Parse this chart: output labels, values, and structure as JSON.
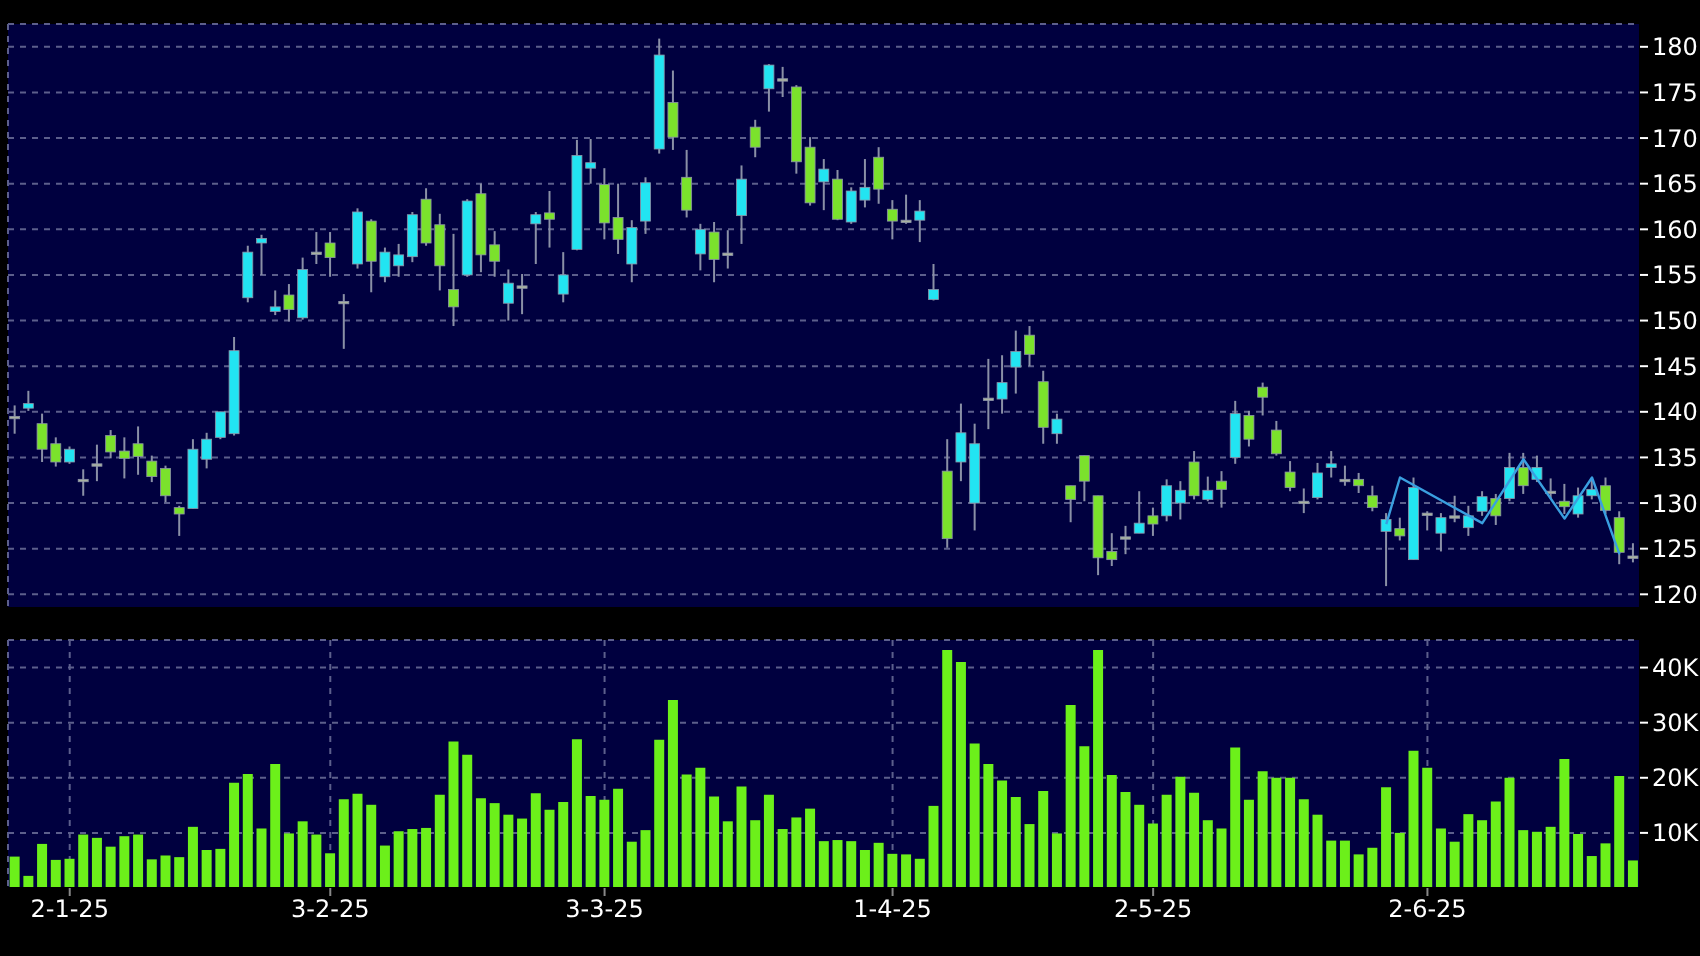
{
  "chart_data": [
    {
      "type": "candlestick",
      "categories": [
        null,
        null,
        null,
        null,
        null,
        null,
        null,
        null,
        null,
        null,
        null,
        null,
        null,
        null,
        null,
        null,
        null,
        null,
        null,
        null,
        null,
        null,
        null,
        null,
        null,
        null,
        null,
        null,
        null,
        null,
        null,
        null,
        null,
        null,
        null,
        null,
        null,
        null,
        null,
        null,
        null,
        null,
        null,
        null,
        null,
        null,
        null,
        null,
        null,
        null,
        null,
        null,
        null,
        null,
        null,
        null,
        null,
        null,
        null,
        null,
        null,
        null,
        null,
        null,
        null,
        null,
        null,
        null,
        null,
        null,
        null,
        null,
        null,
        null,
        null,
        null,
        null,
        null,
        null,
        null,
        null,
        null,
        null,
        null,
        null,
        null,
        null,
        null,
        null,
        null,
        null,
        null,
        null,
        null,
        null,
        null,
        null,
        null,
        null,
        null,
        null,
        null,
        null,
        null,
        null,
        null,
        null,
        null,
        null,
        null,
        null,
        null,
        null,
        null,
        null,
        null,
        null,
        null,
        null
      ],
      "ohlc": [
        [
          139.5,
          140.7,
          137.6,
          139.5
        ],
        [
          140.4,
          142.3,
          140.1,
          140.9
        ],
        [
          138.7,
          139.8,
          134.5,
          135.9
        ],
        [
          136.5,
          137.2,
          134.0,
          134.5
        ],
        [
          134.5,
          136.2,
          134.3,
          135.9
        ],
        [
          132.6,
          133.7,
          130.8,
          132.6
        ],
        [
          134.3,
          136.4,
          132.4,
          134.3
        ],
        [
          137.4,
          138.0,
          134.9,
          135.6
        ],
        [
          135.7,
          137.2,
          132.7,
          134.9
        ],
        [
          136.5,
          138.4,
          133.1,
          135.1
        ],
        [
          134.6,
          135.2,
          132.3,
          132.9
        ],
        [
          133.8,
          134.1,
          130.1,
          130.8
        ],
        [
          129.5,
          129.7,
          126.4,
          128.8
        ],
        [
          129.4,
          137.0,
          129.4,
          135.9
        ],
        [
          134.8,
          137.7,
          133.8,
          137.0
        ],
        [
          137.2,
          140.0,
          137.0,
          140.0
        ],
        [
          137.6,
          148.2,
          137.4,
          146.7
        ],
        [
          152.5,
          158.2,
          152.0,
          157.5
        ],
        [
          158.5,
          159.4,
          155.0,
          159.0
        ],
        [
          151.0,
          153.3,
          150.6,
          151.5
        ],
        [
          152.8,
          154.0,
          149.9,
          151.2
        ],
        [
          150.3,
          156.9,
          150.1,
          155.6
        ],
        [
          157.5,
          159.7,
          156.2,
          157.5
        ],
        [
          158.5,
          159.7,
          154.8,
          156.9
        ],
        [
          152.1,
          152.9,
          146.9,
          152.1
        ],
        [
          156.2,
          162.3,
          155.7,
          161.9
        ],
        [
          160.9,
          161.1,
          153.1,
          156.5
        ],
        [
          154.8,
          158.0,
          154.2,
          157.5
        ],
        [
          156.0,
          158.4,
          154.8,
          157.2
        ],
        [
          157.0,
          161.9,
          156.4,
          161.6
        ],
        [
          163.3,
          164.5,
          158.2,
          158.5
        ],
        [
          160.5,
          161.7,
          153.3,
          156.0
        ],
        [
          153.4,
          159.5,
          149.4,
          151.5
        ],
        [
          155.0,
          163.3,
          154.8,
          163.1
        ],
        [
          163.9,
          165.0,
          155.3,
          157.2
        ],
        [
          158.3,
          159.8,
          154.8,
          156.5
        ],
        [
          151.9,
          155.6,
          150.0,
          154.1
        ],
        [
          153.8,
          155.1,
          150.7,
          153.8
        ],
        [
          160.6,
          161.9,
          156.2,
          161.6
        ],
        [
          161.8,
          164.2,
          158.0,
          161.1
        ],
        [
          152.9,
          157.5,
          152.0,
          155.0
        ],
        [
          157.8,
          169.8,
          157.7,
          168.1
        ],
        [
          166.7,
          169.9,
          165.0,
          167.3
        ],
        [
          164.9,
          166.7,
          158.9,
          160.7
        ],
        [
          161.3,
          165.0,
          157.3,
          158.9
        ],
        [
          156.2,
          161.0,
          154.2,
          160.2
        ],
        [
          160.9,
          165.7,
          159.5,
          165.1
        ],
        [
          168.8,
          180.9,
          168.3,
          179.1
        ],
        [
          173.9,
          177.4,
          168.7,
          170.1
        ],
        [
          165.7,
          168.7,
          161.3,
          162.1
        ],
        [
          157.3,
          160.6,
          155.5,
          160.0
        ],
        [
          159.7,
          160.8,
          154.2,
          156.7
        ],
        [
          157.4,
          159.9,
          155.7,
          157.4
        ],
        [
          161.5,
          167.0,
          158.4,
          165.5
        ],
        [
          171.2,
          172.0,
          167.9,
          169.0
        ],
        [
          175.4,
          178.1,
          172.9,
          178.0
        ],
        [
          176.5,
          177.8,
          174.5,
          176.5
        ],
        [
          175.6,
          175.8,
          166.1,
          167.4
        ],
        [
          169.0,
          170.1,
          162.6,
          162.9
        ],
        [
          165.2,
          167.7,
          162.1,
          166.6
        ],
        [
          165.5,
          166.5,
          161.0,
          161.1
        ],
        [
          160.8,
          164.6,
          160.6,
          164.2
        ],
        [
          163.2,
          167.7,
          162.4,
          164.6
        ],
        [
          167.9,
          169.0,
          162.8,
          164.4
        ],
        [
          162.2,
          163.2,
          158.9,
          160.9
        ],
        [
          161.0,
          163.8,
          160.6,
          161.0
        ],
        [
          161.0,
          163.2,
          158.6,
          162.0
        ],
        [
          152.3,
          156.2,
          152.2,
          153.4
        ],
        [
          133.5,
          137.0,
          125.1,
          126.1
        ],
        [
          134.5,
          140.9,
          132.4,
          137.7
        ],
        [
          130.0,
          138.7,
          127.0,
          136.5
        ],
        [
          141.5,
          145.8,
          138.1,
          141.5
        ],
        [
          141.4,
          146.2,
          139.8,
          143.2
        ],
        [
          144.9,
          148.9,
          142.0,
          146.6
        ],
        [
          148.4,
          149.4,
          145.0,
          146.3
        ],
        [
          143.3,
          144.5,
          136.5,
          138.3
        ],
        [
          137.6,
          139.8,
          136.5,
          139.2
        ],
        [
          131.9,
          131.9,
          127.9,
          130.4
        ],
        [
          135.2,
          135.2,
          130.2,
          132.4
        ],
        [
          130.8,
          130.8,
          122.1,
          124.0
        ],
        [
          124.7,
          126.7,
          123.1,
          123.8
        ],
        [
          126.3,
          127.5,
          124.4,
          126.3
        ],
        [
          126.7,
          131.3,
          126.7,
          127.8
        ],
        [
          128.6,
          129.5,
          126.4,
          127.7
        ],
        [
          128.6,
          132.6,
          128.0,
          131.9
        ],
        [
          130.0,
          132.4,
          128.2,
          131.4
        ],
        [
          134.5,
          135.7,
          130.4,
          130.8
        ],
        [
          130.4,
          132.9,
          130.2,
          131.4
        ],
        [
          132.4,
          133.5,
          129.5,
          131.5
        ],
        [
          135.0,
          141.2,
          134.3,
          139.8
        ],
        [
          139.6,
          140.1,
          136.2,
          137.0
        ],
        [
          142.7,
          143.2,
          139.6,
          141.6
        ],
        [
          138.0,
          139.0,
          135.2,
          135.4
        ],
        [
          133.4,
          134.6,
          131.3,
          131.7
        ],
        [
          130.2,
          131.6,
          128.9,
          130.2
        ],
        [
          130.6,
          134.4,
          130.4,
          133.3
        ],
        [
          133.9,
          135.7,
          132.8,
          134.3
        ],
        [
          132.6,
          134.1,
          131.9,
          132.6
        ],
        [
          132.6,
          133.3,
          131.1,
          131.9
        ],
        [
          130.8,
          131.9,
          129.1,
          129.5
        ],
        [
          126.9,
          128.9,
          120.9,
          128.2
        ],
        [
          127.2,
          128.4,
          125.9,
          126.4
        ],
        [
          123.8,
          132.8,
          123.8,
          131.7
        ],
        [
          128.9,
          129.1,
          127.0,
          128.9
        ],
        [
          126.7,
          128.9,
          124.7,
          128.4
        ],
        [
          128.6,
          130.8,
          127.9,
          128.6
        ],
        [
          127.3,
          129.7,
          126.4,
          128.6
        ],
        [
          129.1,
          131.3,
          128.6,
          130.7
        ],
        [
          130.5,
          131.0,
          127.6,
          128.6
        ],
        [
          130.5,
          135.5,
          130.2,
          133.9
        ],
        [
          133.9,
          135.5,
          131.0,
          131.9
        ],
        [
          132.6,
          135.2,
          132.3,
          133.9
        ],
        [
          131.3,
          132.7,
          130.5,
          131.3
        ],
        [
          130.2,
          132.1,
          128.8,
          129.6
        ],
        [
          128.8,
          131.7,
          128.4,
          130.8
        ],
        [
          130.8,
          132.7,
          130.4,
          131.5
        ],
        [
          131.9,
          132.8,
          128.8,
          129.2
        ],
        [
          128.4,
          129.1,
          123.3,
          124.6
        ],
        [
          124.2,
          125.6,
          123.5,
          124.2
        ]
      ],
      "colors": [
        "#a9b3a0",
        "#22e4f2",
        "#7be22c",
        "#7be22c",
        "#22e4f2",
        "#a9b3a0",
        "#a9b3a0",
        "#7be22c",
        "#7be22c",
        "#7be22c",
        "#7be22c",
        "#7be22c",
        "#7be22c",
        "#22e4f2",
        "#22e4f2",
        "#22e4f2",
        "#22e4f2",
        "#22e4f2",
        "#22e4f2",
        "#22e4f2",
        "#7be22c",
        "#22e4f2",
        "#a9b3a0",
        "#7be22c",
        "#a9b3a0",
        "#22e4f2",
        "#7be22c",
        "#22e4f2",
        "#22e4f2",
        "#22e4f2",
        "#7be22c",
        "#7be22c",
        "#7be22c",
        "#22e4f2",
        "#7be22c",
        "#7be22c",
        "#22e4f2",
        "#a9b3a0",
        "#22e4f2",
        "#7be22c",
        "#22e4f2",
        "#22e4f2",
        "#22e4f2",
        "#7be22c",
        "#7be22c",
        "#22e4f2",
        "#22e4f2",
        "#22e4f2",
        "#7be22c",
        "#7be22c",
        "#22e4f2",
        "#7be22c",
        "#a9b3a0",
        "#22e4f2",
        "#7be22c",
        "#22e4f2",
        "#a9b3a0",
        "#7be22c",
        "#7be22c",
        "#22e4f2",
        "#7be22c",
        "#22e4f2",
        "#22e4f2",
        "#7be22c",
        "#7be22c",
        "#a9b3a0",
        "#22e4f2",
        "#22e4f2",
        "#7be22c",
        "#22e4f2",
        "#22e4f2",
        "#a9b3a0",
        "#22e4f2",
        "#22e4f2",
        "#7be22c",
        "#7be22c",
        "#22e4f2",
        "#7be22c",
        "#7be22c",
        "#7be22c",
        "#7be22c",
        "#a9b3a0",
        "#22e4f2",
        "#7be22c",
        "#22e4f2",
        "#22e4f2",
        "#7be22c",
        "#22e4f2",
        "#7be22c",
        "#22e4f2",
        "#7be22c",
        "#7be22c",
        "#7be22c",
        "#7be22c",
        "#a9b3a0",
        "#22e4f2",
        "#22e4f2",
        "#a9b3a0",
        "#7be22c",
        "#7be22c",
        "#22e4f2",
        "#7be22c",
        "#22e4f2",
        "#a9b3a0",
        "#22e4f2",
        "#a9b3a0",
        "#22e4f2",
        "#22e4f2",
        "#7be22c",
        "#22e4f2",
        "#7be22c",
        "#22e4f2",
        "#a9b3a0",
        "#7be22c",
        "#22e4f2",
        "#22e4f2",
        "#7be22c",
        "#7be22c",
        "#a9b3a0"
      ],
      "series": [
        {
          "type": "line",
          "color": "#3a9fe0",
          "values": [
            null,
            null,
            null,
            null,
            null,
            null,
            null,
            null,
            null,
            null,
            null,
            null,
            null,
            null,
            null,
            null,
            null,
            null,
            null,
            null,
            null,
            null,
            null,
            null,
            null,
            null,
            null,
            null,
            null,
            null,
            null,
            null,
            null,
            null,
            null,
            null,
            null,
            null,
            null,
            null,
            null,
            null,
            null,
            null,
            null,
            null,
            null,
            null,
            null,
            null,
            null,
            null,
            null,
            null,
            null,
            null,
            null,
            null,
            null,
            null,
            null,
            null,
            null,
            null,
            null,
            null,
            null,
            null,
            null,
            null,
            null,
            null,
            null,
            null,
            null,
            null,
            null,
            null,
            null,
            null,
            null,
            null,
            null,
            null,
            null,
            null,
            null,
            null,
            null,
            null,
            null,
            null,
            null,
            null,
            null,
            null,
            null,
            null,
            null,
            null,
            127.7,
            132.8,
            null,
            null,
            null,
            null,
            null,
            127.8,
            null,
            null,
            134.8,
            null,
            null,
            128.3,
            null,
            132.8,
            null,
            124.4,
            null
          ]
        }
      ],
      "marker": "none",
      "ylim": [
        118.5,
        182.5
      ],
      "yticks": [
        120,
        125,
        130,
        135,
        140,
        145,
        150,
        155,
        160,
        165,
        170,
        175,
        180
      ],
      "grid": true,
      "tick_labels": "y"
    },
    {
      "type": "bar",
      "categories": [
        null,
        null,
        null,
        null,
        "2-1-25",
        null,
        null,
        null,
        null,
        null,
        null,
        null,
        null,
        null,
        null,
        null,
        null,
        null,
        null,
        null,
        null,
        null,
        null,
        "3-2-25",
        null,
        null,
        null,
        null,
        null,
        null,
        null,
        null,
        null,
        null,
        null,
        null,
        null,
        null,
        null,
        null,
        null,
        null,
        null,
        "3-3-25",
        null,
        null,
        null,
        null,
        null,
        null,
        null,
        null,
        null,
        null,
        null,
        null,
        null,
        null,
        null,
        null,
        null,
        null,
        null,
        null,
        "1-4-25",
        null,
        null,
        null,
        null,
        null,
        null,
        null,
        null,
        null,
        null,
        null,
        null,
        null,
        null,
        null,
        null,
        null,
        null,
        "2-5-25",
        null,
        null,
        null,
        null,
        null,
        null,
        null,
        null,
        null,
        null,
        null,
        null,
        null,
        null,
        null,
        null,
        null,
        null,
        null,
        "2-6-25",
        null,
        null,
        null,
        null,
        null,
        null,
        null,
        null,
        null,
        null,
        null,
        null,
        null,
        null,
        null
      ],
      "values": [
        5700,
        2200,
        8000,
        5100,
        5300,
        9700,
        9100,
        7500,
        9400,
        9700,
        5200,
        5900,
        5600,
        11100,
        6900,
        7100,
        19100,
        20700,
        10800,
        22500,
        9900,
        12100,
        9700,
        6300,
        16100,
        17100,
        15100,
        7700,
        10300,
        10700,
        10900,
        16900,
        26600,
        24200,
        16300,
        15400,
        13300,
        12600,
        17200,
        14200,
        15600,
        27000,
        16700,
        16000,
        18000,
        8400,
        10500,
        26900,
        34100,
        20600,
        21800,
        16600,
        12100,
        18400,
        12300,
        16900,
        10700,
        12800,
        14400,
        8500,
        8700,
        8500,
        6900,
        8200,
        6200,
        6100,
        5300,
        14900,
        43200,
        41000,
        26200,
        22500,
        19500,
        16500,
        11600,
        17600,
        9900,
        33200,
        25700,
        43200,
        20500,
        17400,
        15100,
        11700,
        16900,
        20200,
        17300,
        12300,
        10800,
        25500,
        16000,
        21200,
        20000,
        20000,
        16100,
        13300,
        8600,
        8600,
        6100,
        7300,
        18300,
        10000,
        24900,
        21800,
        10800,
        8400,
        13400,
        12300,
        15700,
        20000,
        10500,
        10200,
        11100,
        23400,
        9800,
        5800,
        8100,
        20300,
        5000
      ],
      "color": "#6cf01a",
      "ylim": [
        0,
        45000
      ],
      "yticks": [
        {
          "value": 10000,
          "label": "10K"
        },
        {
          "value": 20000,
          "label": "20K"
        },
        {
          "value": 30000,
          "label": "30K"
        },
        {
          "value": 40000,
          "label": "40K"
        }
      ],
      "grid": true
    }
  ]
}
